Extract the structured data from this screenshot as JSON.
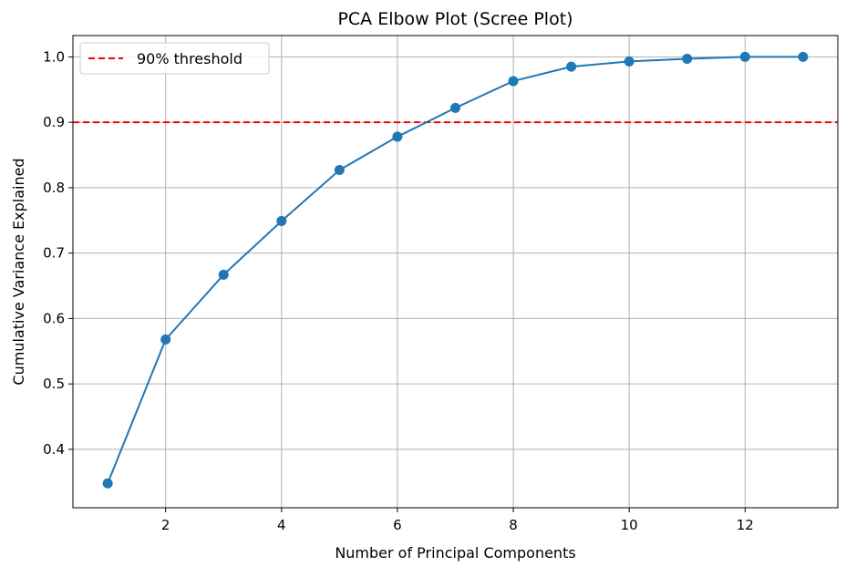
{
  "chart_data": {
    "type": "line",
    "title": "PCA Elbow Plot (Scree Plot)",
    "xlabel": "Number of Principal Components",
    "ylabel": "Cumulative Variance Explained",
    "x": [
      1,
      2,
      3,
      4,
      5,
      6,
      7,
      8,
      9,
      10,
      11,
      12,
      13
    ],
    "series": [
      {
        "values": [
          0.348,
          0.568,
          0.667,
          0.749,
          0.827,
          0.878,
          0.922,
          0.963,
          0.985,
          0.993,
          0.997,
          1.0,
          1.0
        ],
        "color": "#1f77b4",
        "marker": "circle"
      }
    ],
    "xlim": [
      0.4,
      13.6
    ],
    "ylim": [
      0.3107,
      1.0326
    ],
    "xticks": [
      2,
      4,
      6,
      8,
      10,
      12
    ],
    "xtick_labels": [
      "2",
      "4",
      "6",
      "8",
      "10",
      "12"
    ],
    "yticks": [
      0.4,
      0.5,
      0.6,
      0.7,
      0.8,
      0.9,
      1.0
    ],
    "ytick_labels": [
      "0.4",
      "0.5",
      "0.6",
      "0.7",
      "0.8",
      "0.9",
      "1.0"
    ],
    "grid": true,
    "threshold": {
      "value": 0.9,
      "label": "90% threshold",
      "color": "#ff0000",
      "style": "dashed"
    },
    "legend": {
      "placement": "top-left",
      "entries": [
        "90% threshold"
      ]
    }
  }
}
